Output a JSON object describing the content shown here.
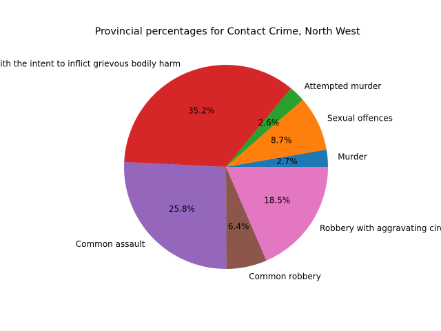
{
  "chart_data": {
    "type": "pie",
    "title": "Provincial percentages for Contact Crime, North West",
    "start_angle_deg": 0,
    "direction": "counterclockwise",
    "slices": [
      {
        "label": "Murder",
        "percent_label": "2.7%",
        "value": 2.7,
        "color": "#1f77b4"
      },
      {
        "label": "Sexual offences",
        "percent_label": "8.7%",
        "value": 8.7,
        "color": "#ff7f0e"
      },
      {
        "label": "Attempted murder",
        "percent_label": "2.6%",
        "value": 2.6,
        "color": "#2ca02c"
      },
      {
        "label": "Assault with the intent to inflict grievous bodily harm",
        "percent_label": "35.2%",
        "value": 35.2,
        "color": "#d62728"
      },
      {
        "label": "Common assault",
        "percent_label": "25.8%",
        "value": 25.8,
        "color": "#9467bd"
      },
      {
        "label": "Common robbery",
        "percent_label": "6.4%",
        "value": 6.4,
        "color": "#8c564b"
      },
      {
        "label": "Robbery with aggravating circumstances",
        "percent_label": "18.5%",
        "value": 18.5,
        "color": "#e377c2"
      }
    ]
  }
}
